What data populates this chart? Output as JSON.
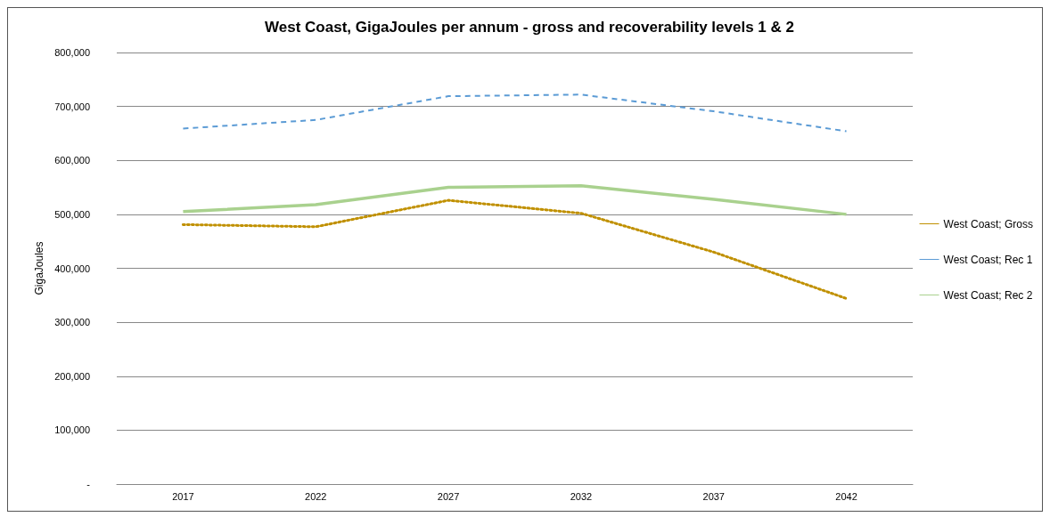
{
  "chart_data": {
    "type": "line",
    "title": "West Coast, GigaJoules per annum - gross and recoverability levels 1 & 2",
    "ylabel": "GigaJoules",
    "categories": [
      "2017",
      "2022",
      "2027",
      "2032",
      "2037",
      "2042"
    ],
    "series": [
      {
        "name": "West Coast; Gross",
        "color": "#c09000",
        "line_style": "dotted",
        "values": [
          481000,
          477000,
          526000,
          502000,
          430000,
          344000
        ]
      },
      {
        "name": "West Coast; Rec 1",
        "color": "#5b9bd5",
        "line_style": "dashed",
        "values": [
          659000,
          675000,
          719000,
          722000,
          691000,
          654000
        ]
      },
      {
        "name": "West Coast; Rec 2",
        "color": "#a9d18e",
        "line_style": "solid",
        "values": [
          505000,
          518000,
          550000,
          553000,
          528000,
          500000
        ]
      }
    ],
    "ylim": [
      0,
      800000
    ],
    "yticks": [
      {
        "value": 0,
        "label": "-"
      },
      {
        "value": 100000,
        "label": "100,000"
      },
      {
        "value": 200000,
        "label": "200,000"
      },
      {
        "value": 300000,
        "label": "300,000"
      },
      {
        "value": 400000,
        "label": "400,000"
      },
      {
        "value": 500000,
        "label": "500,000"
      },
      {
        "value": 600000,
        "label": "600,000"
      },
      {
        "value": 700000,
        "label": "700,000"
      },
      {
        "value": 800000,
        "label": "800,000"
      }
    ],
    "grid": "y",
    "legend": "right",
    "marker": "none"
  }
}
